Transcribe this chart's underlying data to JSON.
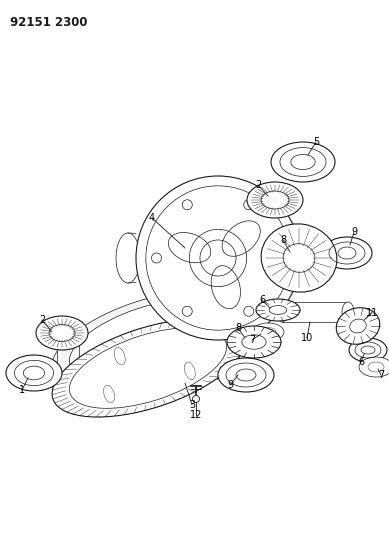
{
  "title": "92151 2300",
  "bg_color": "#ffffff",
  "line_color": "#1a1a1a",
  "figsize": [
    3.89,
    5.33
  ],
  "dpi": 100,
  "title_fontsize": 8.5,
  "label_fontsize": 7.0
}
